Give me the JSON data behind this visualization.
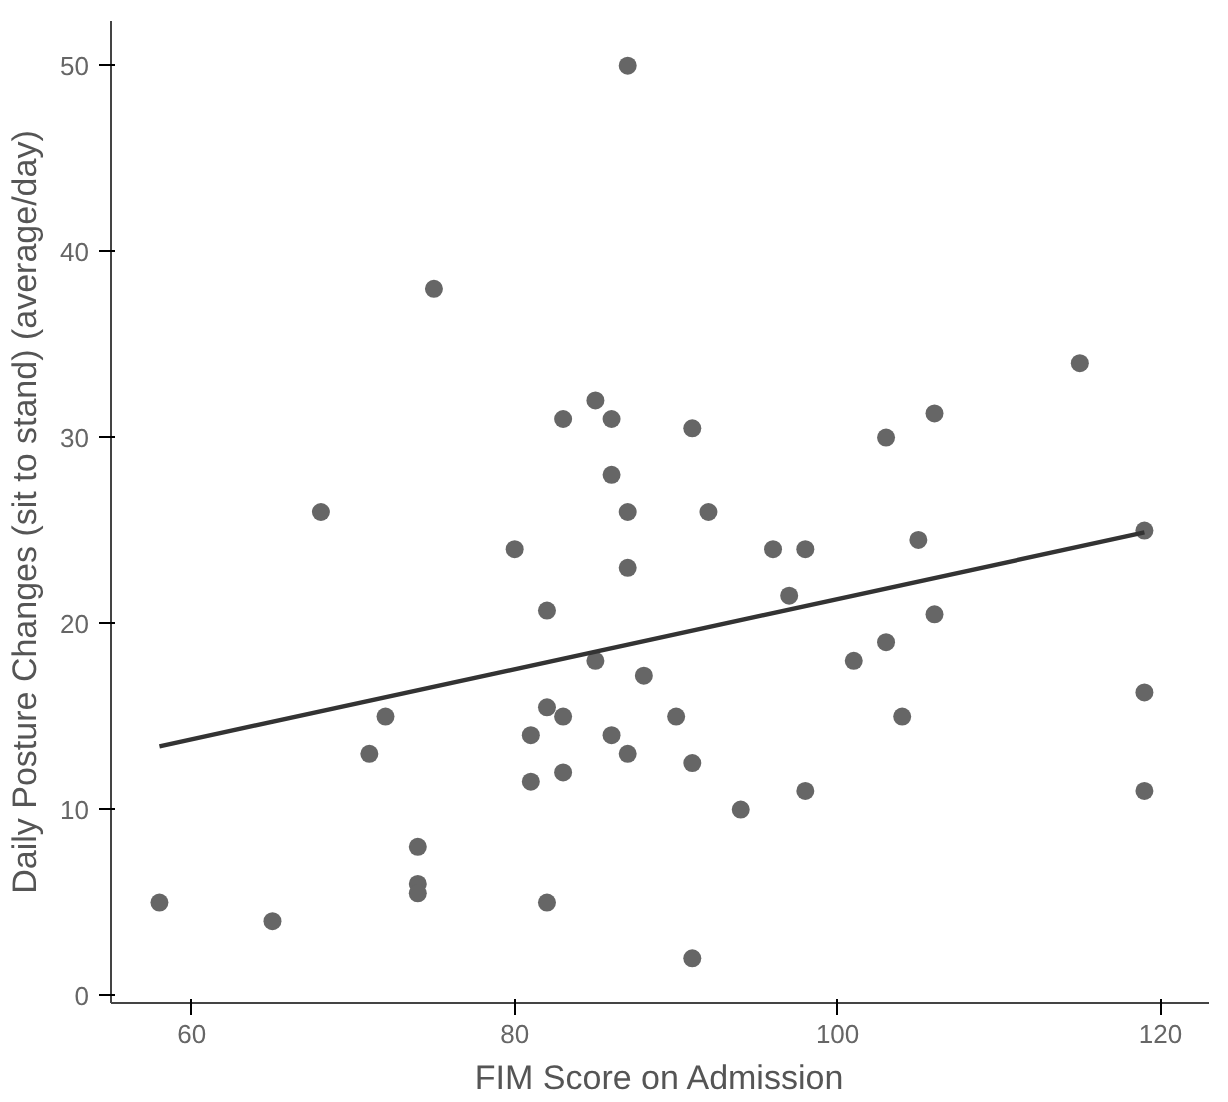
{
  "chart_data": {
    "type": "scatter",
    "xlabel": "FIM Score on Admission",
    "ylabel": "Daily Posture Changes (sit to stand) (average/day)",
    "xlim": [
      55,
      123
    ],
    "ylim": [
      -0.4,
      52.4
    ],
    "xticks": [
      60,
      80,
      100,
      120
    ],
    "yticks": [
      0,
      10,
      20,
      30,
      40,
      50
    ],
    "grid": false,
    "series": [
      {
        "marker": "circle",
        "color": "#666666",
        "x": [
          58,
          65,
          68,
          71,
          72,
          74,
          74,
          74,
          75,
          80,
          81,
          81,
          82,
          82,
          82,
          83,
          83,
          83,
          85,
          85,
          86,
          86,
          86,
          87,
          87,
          87,
          87,
          88,
          90,
          91,
          91,
          91,
          92,
          94,
          96,
          97,
          98,
          98,
          101,
          103,
          103,
          104,
          105,
          106,
          106,
          115,
          119,
          119,
          119
        ],
        "values": [
          5,
          4,
          26,
          13,
          15,
          8,
          6,
          5.5,
          38,
          24,
          14,
          11.5,
          20.7,
          15.5,
          5,
          15,
          12,
          31,
          32,
          18,
          31,
          28,
          14,
          50,
          26,
          23,
          13,
          17.2,
          15,
          30.5,
          12.5,
          2,
          26,
          10,
          24,
          21.5,
          24,
          11,
          18,
          30,
          19,
          15,
          24.5,
          31.3,
          20.5,
          34,
          25,
          16.3,
          11
        ]
      },
      {
        "type": "line",
        "color": "#333333",
        "x": [
          58,
          119
        ],
        "values": [
          13.4,
          24.9
        ]
      }
    ]
  }
}
